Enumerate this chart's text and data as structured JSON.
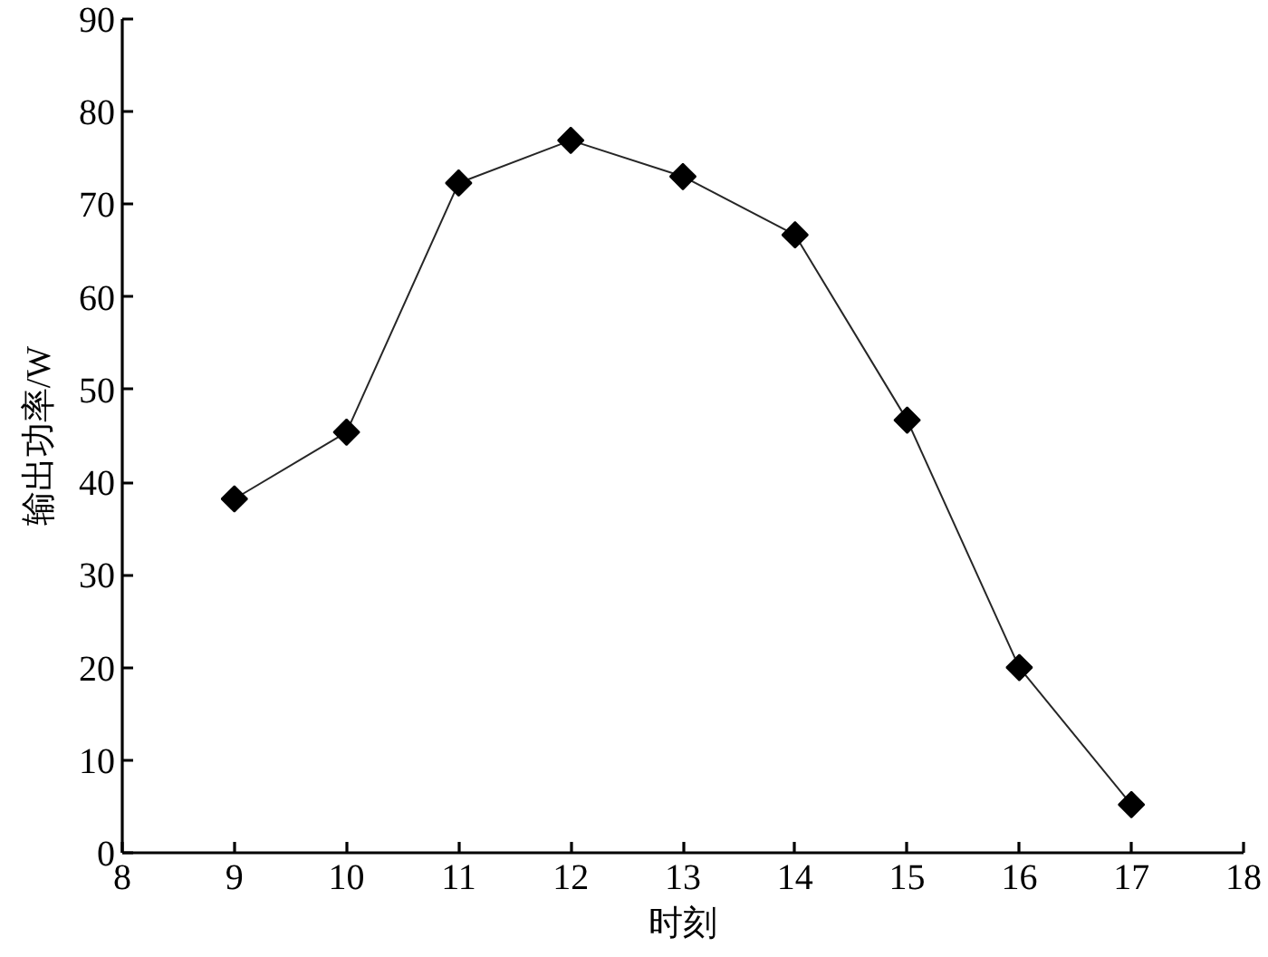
{
  "chart_data": {
    "type": "line",
    "xlabel": "时刻",
    "ylabel": "输出功率/W",
    "x": [
      9,
      10,
      11,
      12,
      13,
      14,
      15,
      16,
      17
    ],
    "series": [
      {
        "color": "#000000",
        "values": [
          38.2,
          45.4,
          72.3,
          76.9,
          73.0,
          66.7,
          46.7,
          20.0,
          5.2
        ]
      }
    ],
    "xlim": [
      8,
      18
    ],
    "ylim": [
      0,
      90
    ],
    "xticks": [
      8,
      9,
      10,
      11,
      12,
      13,
      14,
      15,
      16,
      17,
      18
    ],
    "yticks": [
      0,
      10,
      20,
      30,
      40,
      50,
      60,
      70,
      80,
      90
    ],
    "grid": false,
    "marker": "diamond",
    "line_style": "solid"
  }
}
